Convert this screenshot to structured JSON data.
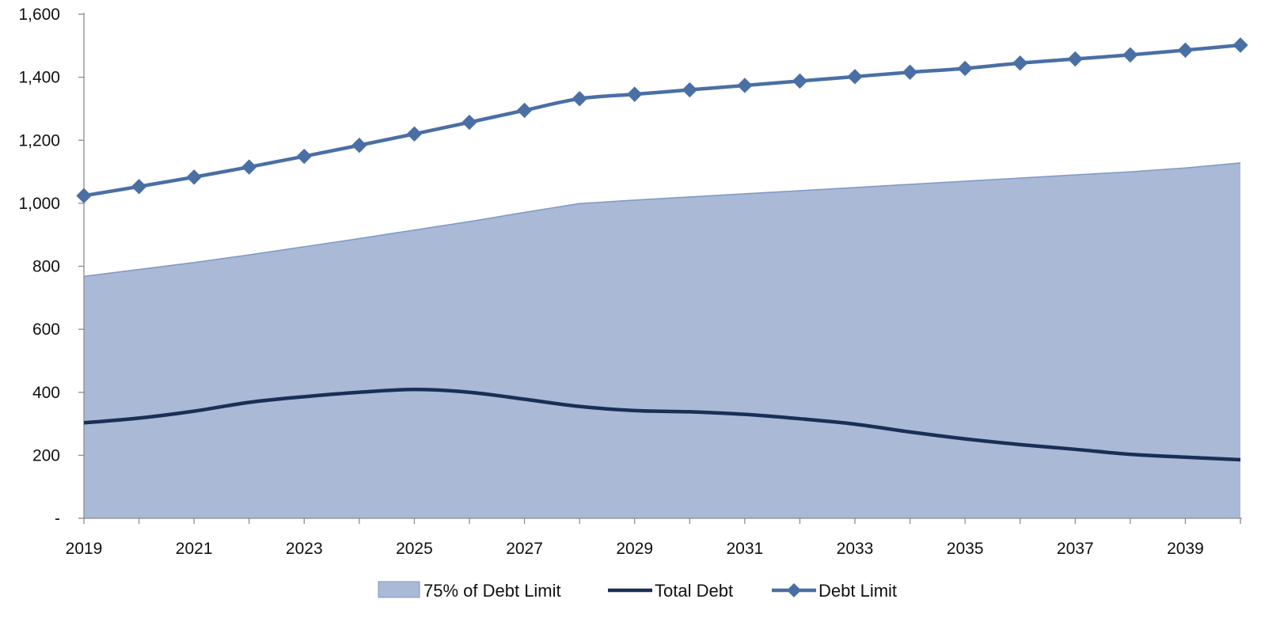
{
  "chart_data": {
    "type": "line",
    "title": "",
    "xlabel": "",
    "ylabel": "",
    "x": [
      2019,
      2020,
      2021,
      2022,
      2023,
      2024,
      2025,
      2026,
      2027,
      2028,
      2029,
      2030,
      2031,
      2032,
      2033,
      2034,
      2035,
      2036,
      2037,
      2038,
      2039,
      2040
    ],
    "x_tick_labels": [
      "2019",
      "2021",
      "2023",
      "2025",
      "2027",
      "2029",
      "2031",
      "2033",
      "2035",
      "2037",
      "2039"
    ],
    "y_tick_labels": [
      "-",
      "200",
      "400",
      "600",
      "800",
      "1,000",
      "1,200",
      "1,400",
      "1,600"
    ],
    "y_tick_values": [
      0,
      200,
      400,
      600,
      800,
      1000,
      1200,
      1400,
      1600
    ],
    "ylim": [
      0,
      1600
    ],
    "grid": false,
    "legend_position": "bottom",
    "series": [
      {
        "name": "75% of Debt Limit",
        "type": "area",
        "color": "#a9b9d6",
        "edge_color": "#7f98c5",
        "values": [
          768,
          790,
          812,
          836,
          862,
          888,
          915,
          942,
          971,
          999,
          1010,
          1020,
          1030,
          1040,
          1050,
          1060,
          1070,
          1080,
          1090,
          1100,
          1112,
          1128
        ]
      },
      {
        "name": "Total Debt",
        "type": "line",
        "color": "#1a2f55",
        "values": [
          303,
          318,
          340,
          368,
          386,
          400,
          409,
          400,
          378,
          355,
          342,
          338,
          330,
          316,
          299,
          274,
          252,
          234,
          219,
          203,
          194,
          186
        ]
      },
      {
        "name": "Debt Limit",
        "type": "line-marker",
        "color": "#4a6fa5",
        "marker": "diamond",
        "values": [
          1024,
          1053,
          1083,
          1115,
          1149,
          1184,
          1220,
          1257,
          1295,
          1332,
          1346,
          1360,
          1374,
          1388,
          1402,
          1416,
          1428,
          1445,
          1458,
          1471,
          1486,
          1502
        ]
      }
    ]
  }
}
